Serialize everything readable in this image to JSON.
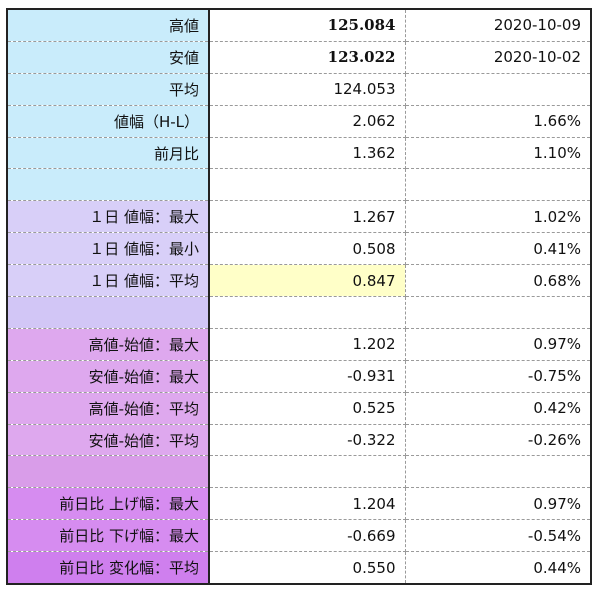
{
  "rows": [
    {
      "label": "高値",
      "value": "125.084",
      "pct": "2020-10-09"
    },
    {
      "label": "安値",
      "value": "123.022",
      "pct": "2020-10-02"
    },
    {
      "label": "平均",
      "value": "124.053",
      "pct": ""
    },
    {
      "label": "値幅（H-L）",
      "value": "2.062",
      "pct": "1.66%"
    },
    {
      "label": "前月比",
      "value": "1.362",
      "pct": "1.10%"
    },
    {
      "label": "",
      "value": "",
      "pct": ""
    },
    {
      "label": "１日 値幅：最大",
      "value": "1.267",
      "pct": "1.02%"
    },
    {
      "label": "１日 値幅：最小",
      "value": "0.508",
      "pct": "0.41%"
    },
    {
      "label": "１日 値幅：平均",
      "value": "0.847",
      "pct": "0.68%"
    },
    {
      "label": "",
      "value": "",
      "pct": ""
    },
    {
      "label": "高値-始値：最大",
      "value": "1.202",
      "pct": "0.97%"
    },
    {
      "label": "安値-始値：最大",
      "value": "-0.931",
      "pct": "-0.75%"
    },
    {
      "label": "高値-始値：平均",
      "value": "0.525",
      "pct": "0.42%"
    },
    {
      "label": "安値-始値：平均",
      "value": "-0.322",
      "pct": "-0.26%"
    },
    {
      "label": "",
      "value": "",
      "pct": ""
    },
    {
      "label": "前日比 上げ幅：最大",
      "value": "1.204",
      "pct": "0.97%"
    },
    {
      "label": "前日比 下げ幅：最大",
      "value": "-0.669",
      "pct": "-0.54%"
    },
    {
      "label": "前日比 変化幅：平均",
      "value": "0.550",
      "pct": "0.44%"
    }
  ],
  "colors": {
    "high": "#1e9a45",
    "low": "#c8252a",
    "negative": "#d23a3a",
    "highlight": "#ffffc8",
    "group1": "#c9ecfb",
    "group2": "#d8cff8",
    "group3": "#dea8ee",
    "group4": "#d68cf0"
  }
}
